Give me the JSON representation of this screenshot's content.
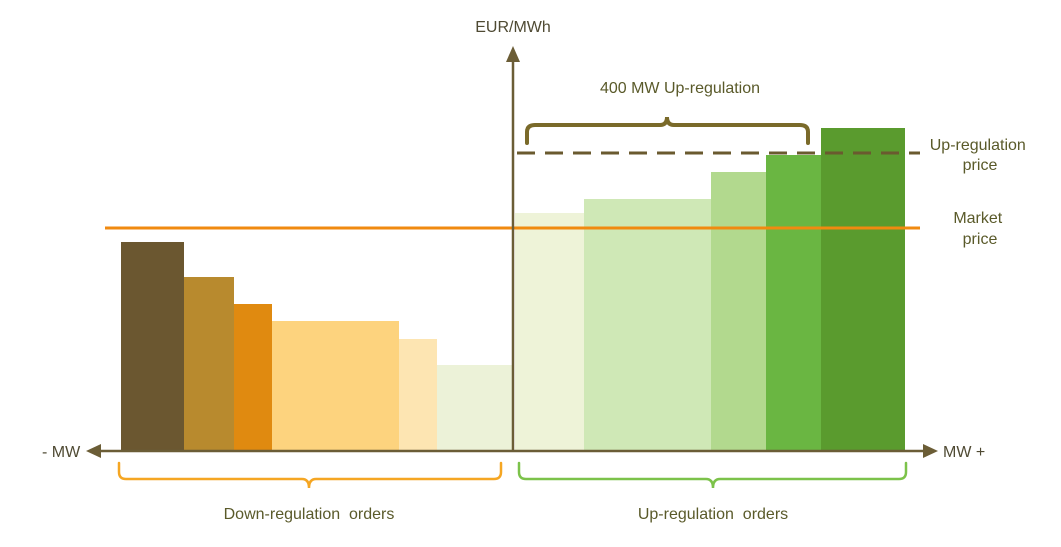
{
  "diagram": {
    "y_axis_label": "EUR/MWh",
    "x_left_label": "- MW",
    "x_right_label": "MW +",
    "up_regulation_volume_label": "400 MW Up-regulation",
    "up_regulation_price_label": [
      "Up-regulation",
      "price"
    ],
    "market_price_label": [
      "Market",
      "price"
    ],
    "down_orders_label": "Down-regulation  orders",
    "up_orders_label": "Up-regulation  orders"
  },
  "colors": {
    "axis": "#6b5d36",
    "market_price": "#f08a10",
    "up_price_dash": "#6a5a2f",
    "volume_brace": "#7a6a2a",
    "down_brace": "#f5a623",
    "up_brace": "#7cc24a"
  },
  "down_bars": [
    {
      "color": "#6b5730"
    },
    {
      "color": "#b88a2e"
    },
    {
      "color": "#e08a10"
    },
    {
      "color": "#fdd37e"
    },
    {
      "color": "#fde5b2"
    },
    {
      "color": "#ecf2d8"
    }
  ],
  "up_bars": [
    {
      "color": "#eef3d8"
    },
    {
      "color": "#cfe8b6"
    },
    {
      "color": "#b2d98e"
    },
    {
      "color": "#6ab642"
    },
    {
      "color": "#5a9b2e"
    }
  ]
}
